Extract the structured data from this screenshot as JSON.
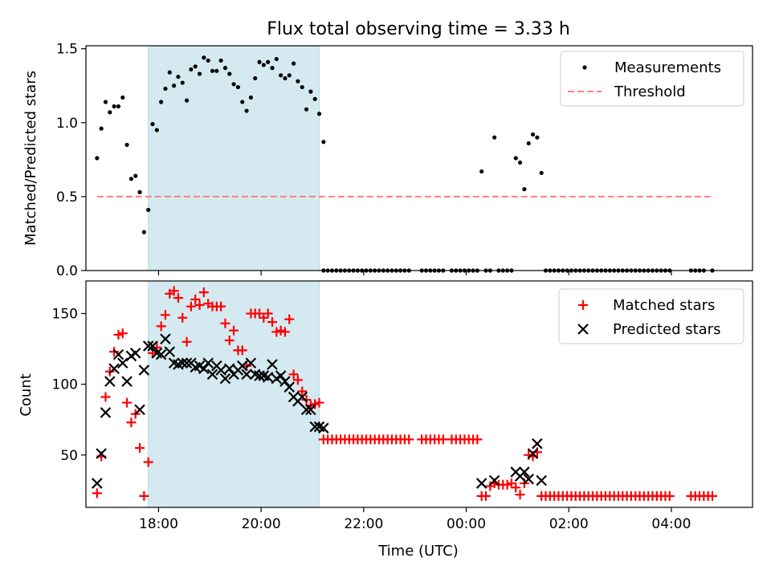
{
  "chart_data": [
    {
      "type": "scatter",
      "title": "Flux total observing time = 3.33 h",
      "ylabel": "Matched/Predicted stars",
      "xlim": [
        "16:35",
        "05:35"
      ],
      "ylim": [
        0,
        1.52
      ],
      "y_ticks": [
        0,
        0.5,
        1.0,
        1.5
      ],
      "y_tick_labels": [
        "0.0",
        "0.5",
        "1.0",
        "1.5"
      ],
      "shaded_interval": [
        "17:48",
        "21:08"
      ],
      "shade_color": "#d4eaf0",
      "legend_position": "upper-right",
      "series": [
        {
          "name": "Measurements",
          "marker": "dot",
          "color": "#000000",
          "x": [
            "16:48",
            "16:53",
            "16:58",
            "17:03",
            "17:08",
            "17:13",
            "17:18",
            "17:23",
            "17:28",
            "17:33",
            "17:38",
            "17:43",
            "17:48",
            "17:53",
            "17:58",
            "18:03",
            "18:08",
            "18:13",
            "18:18",
            "18:23",
            "18:28",
            "18:33",
            "18:38",
            "18:43",
            "18:48",
            "18:53",
            "18:58",
            "19:03",
            "19:08",
            "19:13",
            "19:18",
            "19:23",
            "19:28",
            "19:33",
            "19:38",
            "19:43",
            "19:48",
            "19:53",
            "19:58",
            "20:03",
            "20:08",
            "20:13",
            "20:18",
            "20:23",
            "20:28",
            "20:33",
            "20:38",
            "20:43",
            "20:48",
            "20:53",
            "20:58",
            "21:03",
            "21:08",
            "21:13",
            "00:18",
            "00:33",
            "00:58",
            "01:03",
            "01:08",
            "01:13",
            "01:18",
            "01:23",
            "01:28"
          ],
          "y": [
            0.76,
            0.96,
            1.14,
            1.07,
            1.11,
            1.11,
            1.17,
            0.85,
            0.62,
            0.64,
            0.53,
            0.26,
            0.41,
            0.99,
            0.95,
            1.14,
            1.23,
            1.34,
            1.25,
            1.31,
            1.27,
            1.15,
            1.36,
            1.38,
            1.33,
            1.44,
            1.42,
            1.35,
            1.35,
            1.42,
            1.37,
            1.33,
            1.26,
            1.24,
            1.14,
            1.08,
            1.17,
            1.3,
            1.41,
            1.39,
            1.41,
            1.37,
            1.43,
            1.32,
            1.3,
            1.32,
            1.4,
            1.28,
            1.24,
            1.09,
            1.21,
            1.16,
            1.06,
            0.87,
            0.67,
            0.9,
            0.76,
            0.73,
            0.55,
            0.86,
            0.92,
            0.9,
            0.66
          ]
        },
        {
          "name": "Threshold",
          "style": "dashed",
          "color": "#ff7f7f",
          "x": [
            "16:48",
            "04:48"
          ],
          "y": [
            0.5,
            0.5
          ]
        }
      ],
      "zero_values": {
        "y": 0,
        "x": [
          "21:13",
          "21:18",
          "21:23",
          "21:28",
          "21:33",
          "21:38",
          "21:43",
          "21:48",
          "21:53",
          "21:58",
          "22:03",
          "22:08",
          "22:13",
          "22:18",
          "22:23",
          "22:28",
          "22:33",
          "22:38",
          "22:43",
          "22:48",
          "22:53",
          "23:08",
          "23:13",
          "23:18",
          "23:23",
          "23:28",
          "23:33",
          "23:43",
          "23:48",
          "23:53",
          "23:58",
          "00:03",
          "00:08",
          "00:13",
          "00:23",
          "00:28",
          "00:38",
          "00:43",
          "00:48",
          "00:53",
          "01:33",
          "01:38",
          "01:43",
          "01:48",
          "01:53",
          "01:58",
          "02:03",
          "02:08",
          "02:13",
          "02:18",
          "02:23",
          "02:28",
          "02:33",
          "02:38",
          "02:43",
          "02:48",
          "02:53",
          "02:58",
          "03:03",
          "03:08",
          "03:13",
          "03:18",
          "03:23",
          "03:28",
          "03:33",
          "03:38",
          "03:43",
          "03:48",
          "03:53",
          "03:58",
          "04:23",
          "04:28",
          "04:33",
          "04:38",
          "04:48"
        ]
      }
    },
    {
      "type": "scatter",
      "xlabel": "Time (UTC)",
      "ylabel": "Count",
      "xlim": [
        "16:35",
        "05:35"
      ],
      "ylim": [
        13,
        173
      ],
      "x_ticks": [
        "18:00",
        "20:00",
        "22:00",
        "00:00",
        "02:00",
        "04:00"
      ],
      "y_ticks": [
        50,
        100,
        150
      ],
      "y_tick_labels": [
        "50",
        "100",
        "150"
      ],
      "shaded_interval": [
        "17:48",
        "21:08"
      ],
      "shade_color": "#d4eaf0",
      "legend_position": "upper-right",
      "series": [
        {
          "name": "Matched stars",
          "marker": "+",
          "color": "#ff0000",
          "x": [
            "16:48",
            "16:53",
            "16:58",
            "17:03",
            "17:08",
            "17:13",
            "17:18",
            "17:23",
            "17:28",
            "17:33",
            "17:38",
            "17:43",
            "17:48",
            "17:53",
            "17:58",
            "18:03",
            "18:08",
            "18:13",
            "18:18",
            "18:23",
            "18:28",
            "18:33",
            "18:38",
            "18:43",
            "18:48",
            "18:53",
            "18:58",
            "19:03",
            "19:08",
            "19:13",
            "19:18",
            "19:23",
            "19:28",
            "19:33",
            "19:38",
            "19:43",
            "19:48",
            "19:53",
            "19:58",
            "20:03",
            "20:08",
            "20:13",
            "20:18",
            "20:23",
            "20:28",
            "20:33",
            "20:38",
            "20:43",
            "20:48",
            "20:53",
            "20:58",
            "21:03",
            "21:08",
            "21:13",
            "00:18",
            "00:23",
            "00:28",
            "00:33",
            "00:38",
            "00:43",
            "00:48",
            "00:53",
            "00:58",
            "01:03",
            "01:08",
            "01:13",
            "01:18",
            "01:23",
            "01:28"
          ],
          "y": [
            23,
            49,
            91,
            109,
            123,
            135,
            136,
            87,
            73,
            79,
            55,
            21,
            45,
            122,
            126,
            141,
            149,
            164,
            166,
            161,
            147,
            130,
            155,
            160,
            156,
            165,
            157,
            155,
            155,
            155,
            143,
            131,
            138,
            124,
            124,
            113,
            150,
            150,
            150,
            147,
            150,
            144,
            137,
            138,
            137,
            146,
            107,
            103,
            95,
            89,
            85,
            86,
            87,
            61,
            21,
            21,
            28,
            30,
            29,
            29,
            29,
            30,
            27,
            22,
            30,
            50,
            49,
            52,
            21
          ]
        },
        {
          "name": "Predicted stars",
          "marker": "x",
          "color": "#000000",
          "x": [
            "16:48",
            "16:53",
            "16:58",
            "17:03",
            "17:08",
            "17:13",
            "17:18",
            "17:23",
            "17:28",
            "17:33",
            "17:38",
            "17:43",
            "17:48",
            "17:53",
            "17:58",
            "18:03",
            "18:08",
            "18:13",
            "18:18",
            "18:23",
            "18:28",
            "18:33",
            "18:38",
            "18:43",
            "18:48",
            "18:53",
            "18:58",
            "19:03",
            "19:08",
            "19:13",
            "19:18",
            "19:23",
            "19:28",
            "19:33",
            "19:38",
            "19:43",
            "19:48",
            "19:53",
            "19:58",
            "20:03",
            "20:08",
            "20:13",
            "20:18",
            "20:23",
            "20:28",
            "20:33",
            "20:38",
            "20:43",
            "20:48",
            "20:53",
            "20:58",
            "21:03",
            "21:08",
            "21:13",
            "00:18",
            "00:33",
            "00:58",
            "01:03",
            "01:08",
            "01:13",
            "01:18",
            "01:23",
            "01:28"
          ],
          "y": [
            30,
            51,
            80,
            102,
            111,
            121,
            115,
            102,
            120,
            122,
            82,
            110,
            127,
            127,
            122,
            121,
            132,
            123,
            115,
            114,
            115,
            115,
            115,
            112,
            113,
            111,
            115,
            107,
            113,
            110,
            104,
            111,
            107,
            110,
            113,
            107,
            115,
            107,
            106,
            106,
            105,
            114,
            104,
            106,
            102,
            98,
            91,
            88,
            91,
            82,
            82,
            70,
            70,
            69,
            30,
            32,
            38,
            35,
            38,
            33,
            51,
            58,
            32
          ]
        }
      ],
      "baseline_values": {
        "y": 61,
        "x": [
          "21:18",
          "21:23",
          "21:28",
          "21:33",
          "21:38",
          "21:43",
          "21:48",
          "21:53",
          "21:58",
          "22:03",
          "22:08",
          "22:13",
          "22:18",
          "22:23",
          "22:28",
          "22:33",
          "22:38",
          "22:43",
          "22:48",
          "22:53",
          "23:08",
          "23:13",
          "23:18",
          "23:23",
          "23:28",
          "23:33",
          "23:43",
          "23:48",
          "23:53",
          "23:58",
          "00:03",
          "00:08",
          "00:13"
        ]
      },
      "floor_values": {
        "y": 21,
        "x": [
          "01:33",
          "01:38",
          "01:43",
          "01:48",
          "01:53",
          "01:58",
          "02:03",
          "02:08",
          "02:13",
          "02:18",
          "02:23",
          "02:28",
          "02:33",
          "02:38",
          "02:43",
          "02:48",
          "02:53",
          "02:58",
          "03:03",
          "03:08",
          "03:13",
          "03:18",
          "03:23",
          "03:28",
          "03:33",
          "03:38",
          "03:43",
          "03:48",
          "03:53",
          "03:58",
          "04:23",
          "04:28",
          "04:33",
          "04:38",
          "04:43",
          "04:48"
        ]
      }
    }
  ]
}
